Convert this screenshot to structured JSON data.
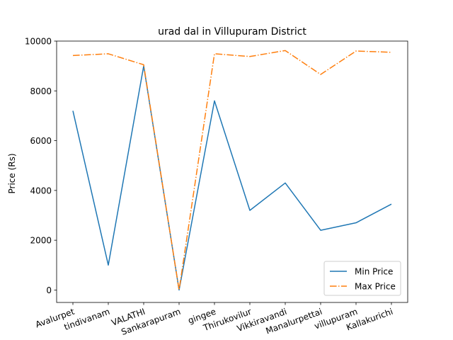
{
  "chart_data": {
    "type": "line",
    "title": "urad dal in Villupuram District",
    "xlabel": "",
    "ylabel": "Price (Rs)",
    "categories": [
      "Avalurpet",
      "tindivanam",
      "VALATHI",
      "Sankarapuram",
      "gingee",
      "Thirukovilur",
      "Vikkiravandi",
      "Manalurpettai",
      "villupuram",
      "Kallakurichi"
    ],
    "ylim": [
      -500,
      10000
    ],
    "yticks": [
      0,
      2000,
      4000,
      6000,
      8000,
      10000
    ],
    "legend_position": "lower-right",
    "grid": false,
    "series": [
      {
        "name": "Min Price",
        "color": "#1f77b4",
        "style": "solid",
        "values": [
          7200,
          1000,
          9000,
          0,
          7600,
          3200,
          4300,
          2400,
          2700,
          3450
        ]
      },
      {
        "name": "Max Price",
        "color": "#ff7f0e",
        "style": "dashdot",
        "values": [
          9420,
          9490,
          9050,
          0,
          9490,
          9380,
          9620,
          8660,
          9600,
          9550
        ]
      }
    ]
  }
}
